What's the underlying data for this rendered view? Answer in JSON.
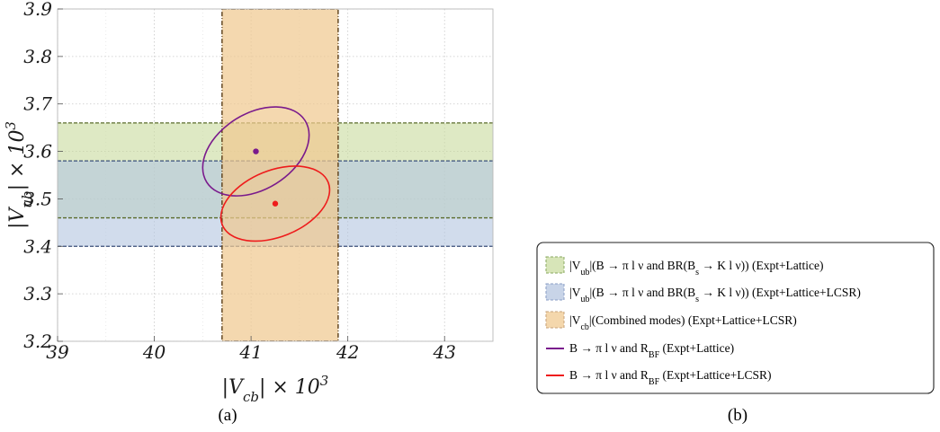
{
  "chart_data": {
    "type": "area",
    "xlabel": "|V_cb| × 10³",
    "ylabel": "|V_ub| × 10³",
    "xlim": [
      39,
      43.5
    ],
    "ylim": [
      3.2,
      3.9
    ],
    "xticks": [
      "39",
      "40",
      "41",
      "42",
      "43"
    ],
    "yticks": [
      "3.2",
      "3.3",
      "3.4",
      "3.5",
      "3.6",
      "3.7",
      "3.8",
      "3.9"
    ],
    "grid": true,
    "bands": [
      {
        "name": "|V_ub|(B → π l ν and BR(B_s → K l ν)) (Expt+Lattice)",
        "axis": "y",
        "range": [
          3.46,
          3.66
        ],
        "color": "#c9dca0"
      },
      {
        "name": "|V_ub|(B → π l ν and BR(B_s → K l ν)) (Expt+Lattice+LCSR)",
        "axis": "y",
        "range": [
          3.4,
          3.58
        ],
        "color": "#b5c6e0"
      },
      {
        "name": "|V_cb|(Combined modes) (Expt+Lattice+LCSR)",
        "axis": "x",
        "range": [
          40.7,
          41.9
        ],
        "color": "#f0c990"
      }
    ],
    "ellipses": [
      {
        "name": "B → π l ν and R_BF (Expt+Lattice)",
        "center": [
          41.05,
          3.6
        ],
        "half_width": 0.6,
        "half_height": 0.08,
        "tilt": -32,
        "color": "#7a1a8c"
      },
      {
        "name": "B → π l ν and R_BF (Expt+Lattice+LCSR)",
        "center": [
          41.25,
          3.49
        ],
        "half_width": 0.59,
        "half_height": 0.07,
        "tilt": -22,
        "color": "#ee1c1c"
      }
    ],
    "legend": "right",
    "panel_labels": [
      "(a)",
      "(b)"
    ]
  }
}
